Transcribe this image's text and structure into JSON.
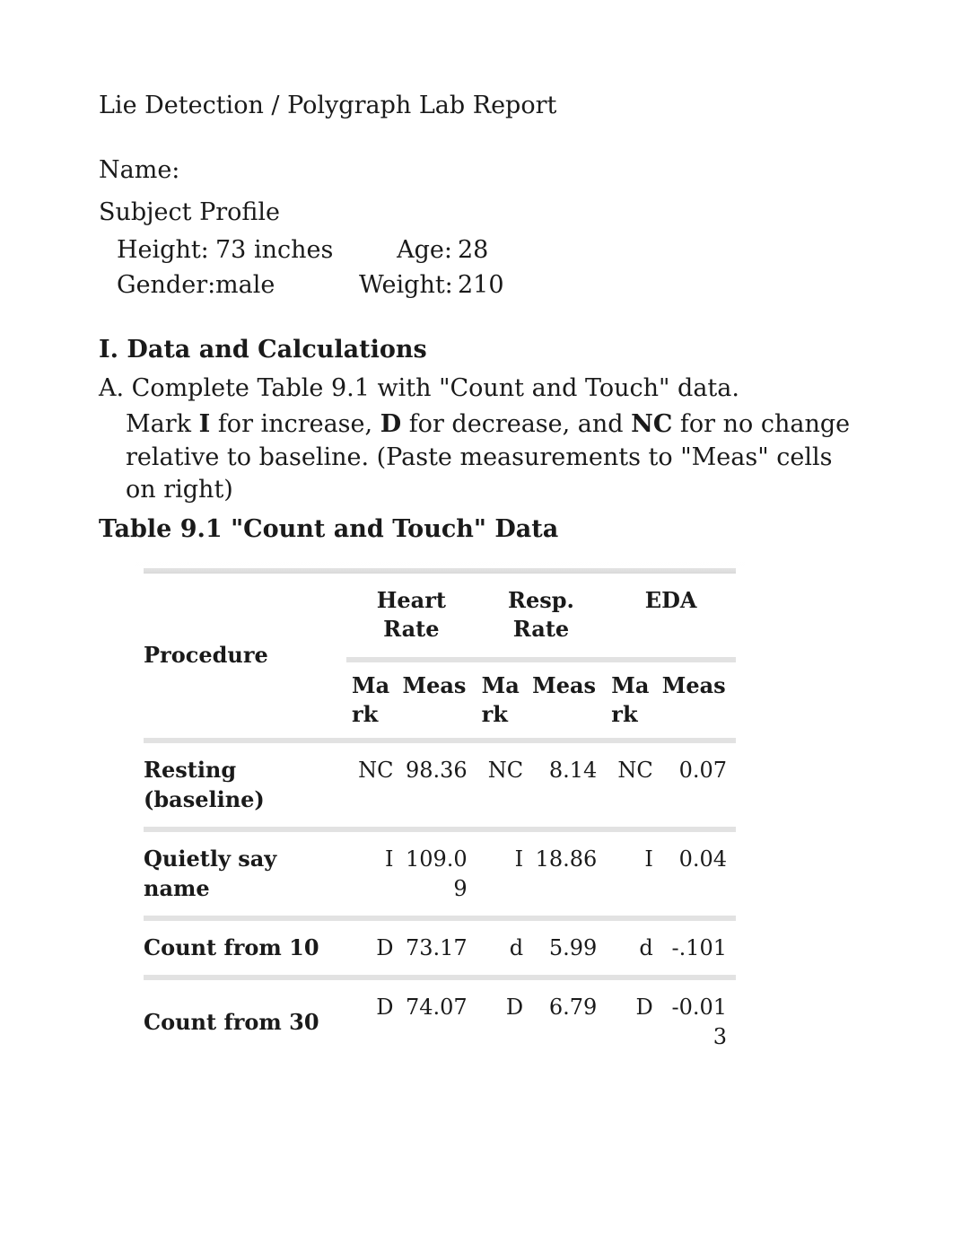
{
  "doc": {
    "title": "Lie Detection / Polygraph Lab Report",
    "name_label": "Name:",
    "profile_heading": "Subject Profile",
    "profile": {
      "height_label": "Height:",
      "height_value": "73 inches",
      "age_label": "Age:",
      "age_value": "28",
      "gender_label": "Gender:",
      "gender_value": "male",
      "weight_label": "Weight:",
      "weight_value": "210"
    },
    "section1_heading": "I. Data and Calculations",
    "section1_a": "A. Complete Table 9.1 with \"Count and Touch\" data.",
    "section1_a_detail": "Mark I for increase, D for decrease, and NC for no change relative to baseline. (Paste measurements to \"Meas\" cells on right)",
    "section1_a_detail_prefix": "Mark ",
    "section1_a_detail_I": "I",
    "section1_a_detail_mid1": " for increase, ",
    "section1_a_detail_D": "D",
    "section1_a_detail_mid2": " for decrease, and ",
    "section1_a_detail_NC": "NC",
    "section1_a_detail_suffix": " for no change relative to baseline. (Paste measurements to \"Meas\" cells on right)",
    "table_title": "Table 9.1 \"Count and Touch\" Data"
  },
  "table": {
    "header": {
      "procedure": "Procedure",
      "hr": "Heart Rate",
      "rr": "Resp. Rate",
      "eda": "EDA",
      "mark": "Mark",
      "meas": "Meas",
      "meas_s": "Meas"
    },
    "rows": [
      {
        "proc": "Resting (baseline)",
        "hr_mark": "NC",
        "hr_meas": "98.36",
        "rr_mark": "NC",
        "rr_meas": "8.14",
        "eda_mark": "NC",
        "eda_meas": "0.07"
      },
      {
        "proc": "Quietly say name",
        "hr_mark": "I",
        "hr_meas": "109.09",
        "rr_mark": "I",
        "rr_meas": "18.86",
        "eda_mark": "I",
        "eda_meas": "0.04"
      },
      {
        "proc": "Count from 10",
        "hr_mark": "D",
        "hr_meas": "73.17",
        "rr_mark": "d",
        "rr_meas": "5.99",
        "eda_mark": "d",
        "eda_meas": "-.101"
      },
      {
        "proc": "Count from 30",
        "hr_mark": "D",
        "hr_meas": "74.07",
        "rr_mark": "D",
        "rr_meas": "6.79",
        "eda_mark": "D",
        "eda_meas": "-0.013"
      }
    ],
    "style": {
      "border_color": "#e2e2e2",
      "header_border_color": "#d9d9d9",
      "text_color": "#1a1a1a",
      "background": "#ffffff",
      "font_family": "Georgia serif",
      "font_size_body": 27,
      "font_size_table": 24
    }
  }
}
